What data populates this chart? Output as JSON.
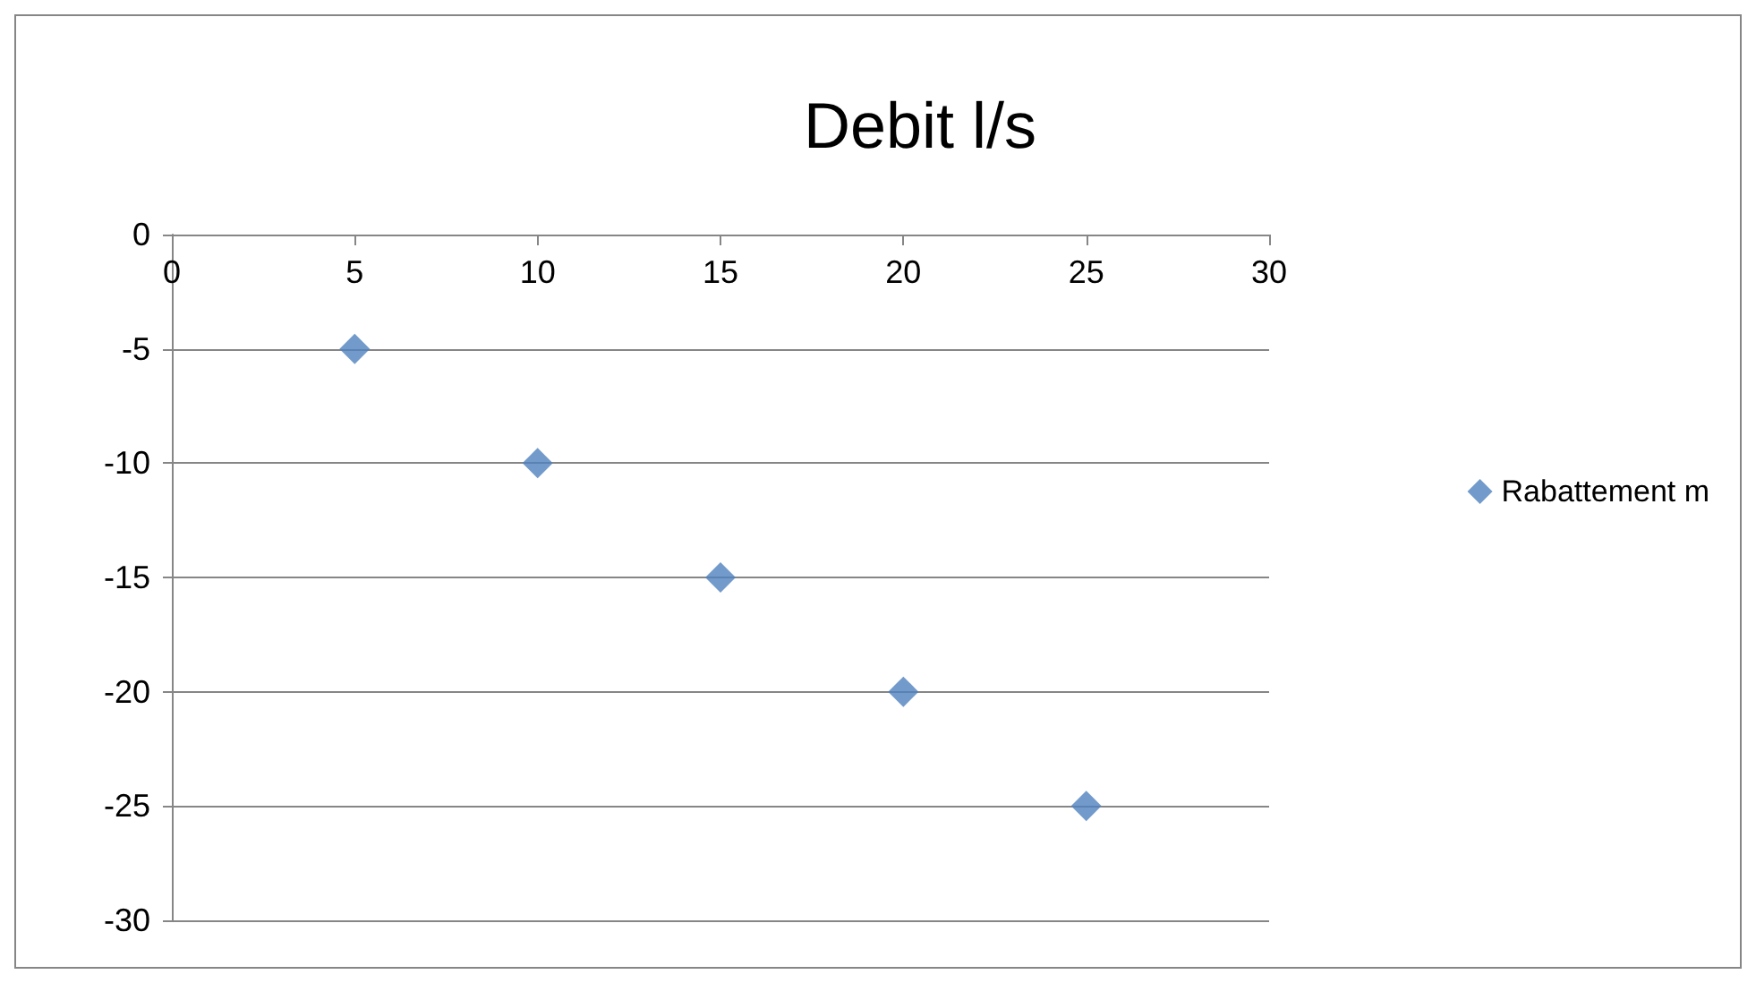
{
  "chart_data": {
    "type": "scatter",
    "title": "Debit l/s",
    "x": [
      5,
      10,
      15,
      20,
      25
    ],
    "series": [
      {
        "name": "Rabattement m",
        "color": "#4f81bd",
        "values": [
          -5,
          -10,
          -15,
          -20,
          -25
        ]
      }
    ],
    "xlim": [
      0,
      30
    ],
    "xticks": [
      0,
      5,
      10,
      15,
      20,
      25,
      30
    ],
    "ylim": [
      -30,
      0
    ],
    "yticks": [
      -30,
      -25,
      -20,
      -15,
      -10,
      -5,
      0
    ],
    "grid": "y",
    "legend": "right",
    "marker": "diamond"
  }
}
